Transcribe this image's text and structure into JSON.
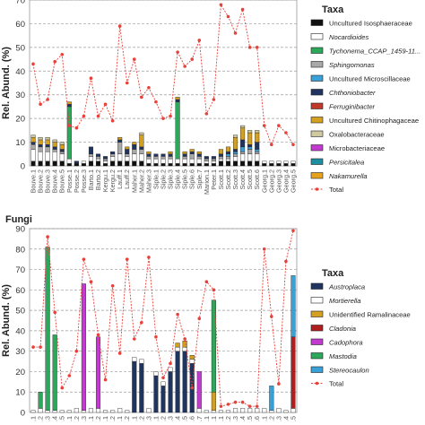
{
  "chart_data": [
    {
      "type": "bar",
      "subtitle": "",
      "ylabel": "Rel. Abund. (%)",
      "ylim": [
        0,
        70
      ],
      "yticks": [
        0,
        10,
        20,
        30,
        40,
        50,
        60,
        70
      ],
      "grid": true,
      "legend_title": "Taxa",
      "legend_position": "right",
      "categories": [
        "Bouve.1",
        "Bouve.2",
        "Bouve.3",
        "Bouve.4",
        "Bouve.5",
        "Posse.1",
        "Posse.2",
        "Posse.3",
        "Barto.1",
        "Barto.2",
        "Kergu.1",
        "Kergu.2",
        "Lauff.1",
        "Lauff.2",
        "Maher.1",
        "Maher.2",
        "Maher.3",
        "Siple.1",
        "Siple.2",
        "Siple.3",
        "Siple.4",
        "Siple.5",
        "Siple.6",
        "Siple.7",
        "Marion.1",
        "Peter.1",
        "Scott.1",
        "Scott.2",
        "Scott.3",
        "Scott.4",
        "Scott.5",
        "Scott.6",
        "Georg.1",
        "Georg.2",
        "Georg.3",
        "Georg.4",
        "Georg.5"
      ],
      "series": [
        {
          "name": "Uncultured Isosphaeraceae",
          "color": "#111111",
          "values": [
            2,
            2,
            2,
            2,
            2,
            1,
            1,
            1,
            2,
            2,
            1,
            2,
            2,
            2,
            2,
            2,
            1,
            1,
            1,
            1,
            1,
            1,
            1,
            1,
            1,
            1,
            2,
            2,
            2,
            2,
            2,
            2,
            1,
            1,
            1,
            1,
            1
          ]
        },
        {
          "name": "Nocardioides",
          "color": "#ffffff",
          "values": [
            5,
            4,
            4,
            4,
            3,
            2,
            0,
            1,
            2,
            1,
            1,
            2,
            3,
            2,
            3,
            3,
            2,
            2,
            2,
            2,
            2,
            2,
            2,
            2,
            1,
            1,
            1,
            1,
            2,
            3,
            3,
            3,
            1,
            1,
            1,
            1,
            1
          ]
        },
        {
          "name": "Tychonema_CCAP_1459-11...",
          "color": "#2ca85a",
          "values": [
            0,
            0,
            0,
            0,
            0,
            22,
            0,
            0,
            0,
            0,
            0,
            0,
            0,
            0,
            0,
            0,
            0,
            0,
            0,
            0,
            24,
            0,
            0,
            0,
            0,
            0,
            0,
            0,
            0,
            0,
            0,
            0,
            0,
            0,
            0,
            0,
            0
          ]
        },
        {
          "name": "Sphingomonas",
          "color": "#a9a9a9",
          "values": [
            2,
            2,
            2,
            1,
            1,
            0,
            0,
            0,
            1,
            1,
            1,
            1,
            5,
            1,
            2,
            2,
            1,
            1,
            1,
            1,
            0,
            1,
            2,
            1,
            1,
            1,
            1,
            1,
            1,
            1,
            2,
            1,
            0,
            0,
            0,
            0,
            0
          ]
        },
        {
          "name": "Uncultured Microscillaceae",
          "color": "#3aa0d8",
          "values": [
            0,
            0,
            0,
            0,
            0,
            0,
            0,
            0,
            0,
            0,
            0,
            0,
            0,
            0,
            0,
            0,
            0,
            0,
            0,
            0,
            0,
            0,
            0,
            0,
            0,
            0,
            0,
            1,
            1,
            2,
            1,
            1,
            0,
            0,
            0,
            0,
            0
          ]
        },
        {
          "name": "Chthoniobacter",
          "color": "#1f3560",
          "values": [
            1,
            1,
            1,
            1,
            1,
            1,
            1,
            0,
            3,
            1,
            1,
            1,
            1,
            2,
            2,
            1,
            1,
            1,
            1,
            1,
            1,
            1,
            1,
            1,
            1,
            1,
            1,
            1,
            1,
            3,
            1,
            3,
            0,
            0,
            0,
            0,
            0
          ]
        },
        {
          "name": "Ferruginibacter",
          "color": "#c0392b",
          "values": [
            0,
            0,
            0,
            0,
            0,
            0,
            0,
            0,
            0,
            0,
            0,
            0,
            0,
            0,
            0,
            0,
            0,
            0,
            0,
            0,
            0,
            0,
            0,
            0,
            0,
            0,
            0,
            0,
            0,
            0,
            0,
            0,
            0,
            0,
            0,
            0,
            0
          ]
        },
        {
          "name": "Uncultured Chitinophagaceae",
          "color": "#d4a020",
          "values": [
            2,
            2,
            2,
            2,
            2,
            1,
            0,
            0,
            0,
            0,
            0,
            0,
            1,
            1,
            1,
            5,
            1,
            0,
            0,
            1,
            1,
            1,
            1,
            1,
            0,
            0,
            2,
            2,
            5,
            5,
            5,
            4,
            0,
            0,
            0,
            0,
            0
          ]
        },
        {
          "name": "Oxalobacteraceae",
          "color": "#cfc9a0",
          "values": [
            1,
            1,
            1,
            1,
            1,
            0,
            0,
            0,
            0,
            0,
            0,
            0,
            0,
            0,
            0,
            1,
            0,
            0,
            0,
            0,
            0,
            0,
            0,
            0,
            0,
            0,
            0,
            0,
            1,
            1,
            1,
            1,
            0,
            0,
            0,
            0,
            0
          ]
        },
        {
          "name": "Microbacteriaceae",
          "color": "#c23ad0",
          "values": [
            0,
            0,
            0,
            0,
            0,
            0,
            0,
            0,
            0,
            0,
            0,
            0,
            0,
            0,
            0,
            0,
            0,
            0,
            0,
            0,
            0,
            0,
            0,
            0,
            0,
            0,
            0,
            0,
            0,
            0,
            0,
            0,
            0,
            0,
            0,
            0,
            0
          ]
        },
        {
          "name": "Persicitalea",
          "color": "#1e8fa0",
          "values": [
            0,
            0,
            0,
            0,
            0,
            0,
            0,
            0,
            0,
            0,
            0,
            0,
            0,
            0,
            0,
            0,
            0,
            0,
            0,
            0,
            0,
            0,
            0,
            0,
            0,
            0,
            0,
            0,
            0,
            0,
            0,
            0,
            0,
            0,
            0,
            0,
            0
          ]
        },
        {
          "name": "Nakamurella",
          "color": "#e6a21a",
          "values": [
            0,
            0,
            0,
            0,
            0,
            0,
            0,
            0,
            0,
            0,
            0,
            0,
            0,
            0,
            0,
            0,
            0,
            0,
            0,
            0,
            0,
            0,
            0,
            0,
            0,
            0,
            0,
            0,
            0,
            0,
            0,
            0,
            0,
            0,
            0,
            0,
            0
          ]
        }
      ],
      "total": {
        "name": "Total",
        "color": "#e8403a",
        "values": [
          43,
          26,
          28,
          44,
          47,
          17,
          16,
          21,
          37,
          21,
          26,
          19,
          59,
          35,
          45,
          29,
          33,
          27,
          20,
          21,
          48,
          42,
          45,
          53,
          22,
          28,
          68,
          63,
          56,
          66,
          50,
          50,
          17,
          9,
          17,
          14,
          9
        ]
      }
    },
    {
      "type": "bar",
      "subtitle": "Fungi",
      "ylabel": "Rel. Abund. (%)",
      "ylim": [
        0,
        90
      ],
      "yticks": [
        0,
        10,
        20,
        30,
        40,
        50,
        60,
        70,
        80,
        90
      ],
      "grid": true,
      "legend_title": "Taxa",
      "legend_position": "right",
      "categories": [
        "c1",
        "c2",
        "c3",
        "c4",
        "c5",
        "c6",
        "c7",
        "c8",
        "c9",
        "c10",
        "c11",
        "c12",
        "c13",
        "c14",
        "c15",
        "c16",
        "c17",
        "c18",
        "c19",
        "c20",
        "c21",
        "c22",
        "c23",
        "c24",
        "c25",
        "c26",
        "c27",
        "c28",
        "c29",
        "c30",
        "c31",
        "c32",
        "c33",
        "c34",
        "c35",
        "c36",
        "c37"
      ],
      "tick_labels": [
        ".1",
        ".2",
        ".3",
        ".4",
        ".5",
        ".1",
        ".2",
        ".3",
        ".1",
        ".2",
        ".1",
        ".2",
        ".1",
        ".2",
        ".1",
        ".2",
        ".3",
        ".1",
        ".2",
        ".3",
        ".4",
        ".5",
        ".6",
        ".7",
        ".1",
        ".1",
        ".1",
        ".2",
        ".3",
        ".4",
        ".5",
        ".6",
        ".1",
        ".2",
        ".3",
        ".4",
        ".5"
      ],
      "series": [
        {
          "name": "Austroplaca",
          "color": "#1f3560",
          "values": [
            0,
            0,
            0,
            0,
            0,
            0,
            0,
            0,
            0,
            0,
            0,
            0,
            0,
            0,
            25,
            24,
            0,
            18,
            13,
            20,
            30,
            30,
            24,
            0,
            0,
            0,
            0,
            0,
            0,
            0,
            0,
            0,
            0,
            0,
            0,
            0,
            0
          ]
        },
        {
          "name": "Mortierella",
          "color": "#ffffff",
          "values": [
            1,
            2,
            1,
            1,
            1,
            1,
            2,
            1,
            2,
            2,
            1,
            1,
            2,
            1,
            2,
            2,
            2,
            2,
            2,
            2,
            2,
            2,
            2,
            2,
            1,
            1,
            1,
            1,
            2,
            2,
            2,
            2,
            2,
            1,
            2,
            1,
            2
          ]
        },
        {
          "name": "Unidentified Ramalinaceae",
          "color": "#d4a020",
          "values": [
            0,
            0,
            0,
            0,
            0,
            0,
            0,
            0,
            0,
            0,
            0,
            0,
            0,
            0,
            0,
            0,
            0,
            0,
            0,
            0,
            2,
            3,
            2,
            0,
            0,
            9,
            0,
            0,
            0,
            0,
            0,
            0,
            0,
            0,
            0,
            0,
            0
          ]
        },
        {
          "name": "Cladonia",
          "color": "#b01e1e",
          "values": [
            0,
            0,
            0,
            0,
            0,
            0,
            0,
            0,
            0,
            0,
            0,
            0,
            0,
            0,
            0,
            0,
            0,
            0,
            0,
            0,
            0,
            0,
            0,
            0,
            0,
            0,
            0,
            0,
            0,
            0,
            0,
            0,
            0,
            0,
            0,
            0,
            35
          ]
        },
        {
          "name": "Cadophora",
          "color": "#c23ad0",
          "values": [
            0,
            0,
            0,
            0,
            0,
            0,
            0,
            62,
            0,
            35,
            0,
            0,
            0,
            0,
            0,
            0,
            0,
            0,
            0,
            0,
            0,
            0,
            0,
            18,
            0,
            0,
            0,
            0,
            0,
            0,
            0,
            0,
            0,
            0,
            0,
            0,
            0
          ]
        },
        {
          "name": "Mastodia",
          "color": "#2ca85a",
          "values": [
            0,
            8,
            80,
            37,
            0,
            0,
            0,
            0,
            0,
            0,
            0,
            0,
            0,
            0,
            0,
            0,
            0,
            0,
            0,
            0,
            0,
            0,
            0,
            0,
            0,
            45,
            0,
            0,
            0,
            0,
            0,
            0,
            0,
            0,
            0,
            0,
            0
          ]
        },
        {
          "name": "Stereocaulon",
          "color": "#3aa0d8",
          "values": [
            0,
            0,
            0,
            0,
            0,
            0,
            0,
            0,
            0,
            0,
            0,
            0,
            0,
            0,
            0,
            0,
            0,
            0,
            0,
            0,
            0,
            0,
            0,
            0,
            0,
            0,
            0,
            0,
            0,
            0,
            0,
            0,
            0,
            12,
            0,
            0,
            30
          ]
        }
      ],
      "total": {
        "name": "Total",
        "color": "#e8403a",
        "values": [
          32,
          32,
          86,
          49,
          12,
          18,
          30,
          75,
          64,
          38,
          16,
          62,
          29,
          75,
          36,
          44,
          76,
          37,
          17,
          24,
          48,
          36,
          12,
          46,
          64,
          60,
          3,
          4,
          5,
          5,
          3,
          3,
          80,
          47,
          14,
          74,
          89
        ]
      }
    }
  ]
}
